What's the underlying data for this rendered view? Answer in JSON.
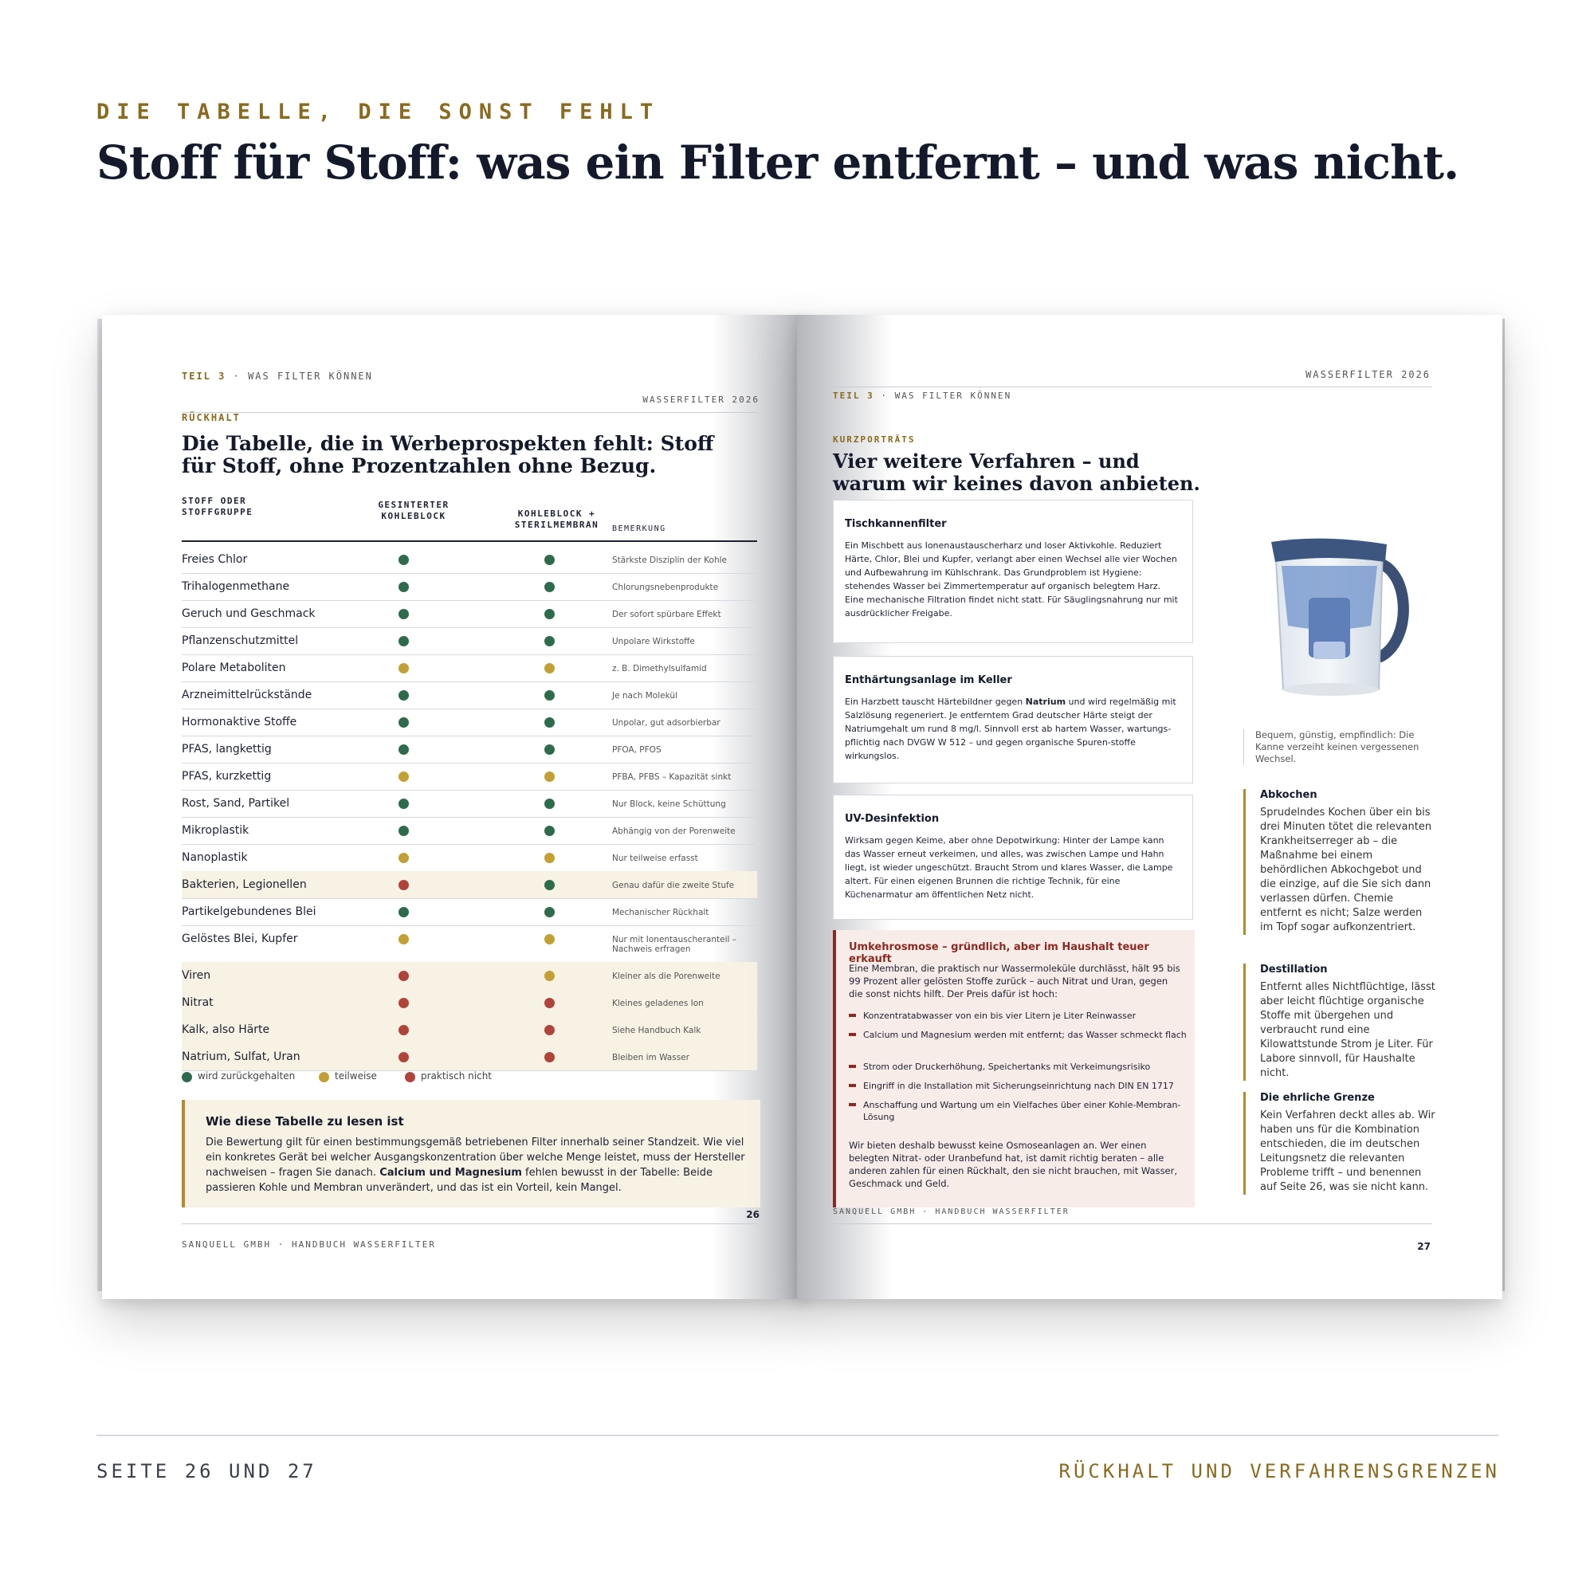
{
  "kicker": "DIE TABELLE, DIE SONST FEHLT",
  "headline": "Stoff für Stoff: was ein Filter entfernt – und was nicht.",
  "left_page": {
    "running_head_part": "TEIL 3",
    "running_head_sep": "·",
    "running_head_title": "WAS FILTER KÖNNEN",
    "running_head_right": "WASSERFILTER 2026",
    "section": "RÜCKHALT",
    "title_line1": "Die Tabelle, die in Werbeprospekten fehlt: Stoff",
    "title_line2": "für Stoff, ohne Prozentzahlen ohne Bezug.",
    "columns": {
      "substance_line1": "STOFF ODER",
      "substance_line2": "STOFFGRUPPE",
      "col1_line1": "GESINTERTER",
      "col1_line2": "KOHLEBLOCK",
      "col2_line1": "KOHLEBLOCK +",
      "col2_line2": "STERILMEMBRAN",
      "remark": "BEMERKUNG"
    },
    "rows": [
      {
        "substance": "Freies Chlor",
        "kohleblock": "wird zurückgehalten",
        "membran": "wird zurückgehalten",
        "note": "Stärkste Disziplin der Kohle"
      },
      {
        "substance": "Trihalogenmethane",
        "kohleblock": "wird zurückgehalten",
        "membran": "wird zurückgehalten",
        "note": "Chlorungsnebenprodukte"
      },
      {
        "substance": "Geruch und Geschmack",
        "kohleblock": "wird zurückgehalten",
        "membran": "wird zurückgehalten",
        "note": "Der sofort spürbare Effekt"
      },
      {
        "substance": "Pflanzenschutzmittel",
        "kohleblock": "wird zurückgehalten",
        "membran": "wird zurückgehalten",
        "note": "Unpolare Wirkstoffe"
      },
      {
        "substance": "Polare Metaboliten",
        "kohleblock": "teilweise",
        "membran": "teilweise",
        "note": "z. B. Dimethylsulfamid"
      },
      {
        "substance": "Arzneimittelrückstände",
        "kohleblock": "wird zurückgehalten",
        "membran": "wird zurückgehalten",
        "note": "Je nach Molekül"
      },
      {
        "substance": "Hormonaktive Stoffe",
        "kohleblock": "wird zurückgehalten",
        "membran": "wird zurückgehalten",
        "note": "Unpolar, gut adsorbierbar"
      },
      {
        "substance": "PFAS, langkettig",
        "kohleblock": "wird zurückgehalten",
        "membran": "wird zurückgehalten",
        "note": "PFOA, PFOS"
      },
      {
        "substance": "PFAS, kurzkettig",
        "kohleblock": "teilweise",
        "membran": "teilweise",
        "note": "PFBA, PFBS – Kapazität sinkt"
      },
      {
        "substance": "Rost, Sand, Partikel",
        "kohleblock": "wird zurückgehalten",
        "membran": "wird zurückgehalten",
        "note": "Nur Block, keine Schüttung"
      },
      {
        "substance": "Mikroplastik",
        "kohleblock": "wird zurückgehalten",
        "membran": "wird zurückgehalten",
        "note": "Abhängig von der Porenweite"
      },
      {
        "substance": "Nanoplastik",
        "kohleblock": "teilweise",
        "membran": "teilweise",
        "note": "Nur teilweise erfasst"
      },
      {
        "substance": "Bakterien, Legionellen",
        "kohleblock": "praktisch nicht",
        "membran": "wird zurückgehalten",
        "note": "Genau dafür die zweite Stufe"
      },
      {
        "substance": "Partikelgebundenes Blei",
        "kohleblock": "wird zurückgehalten",
        "membran": "wird zurückgehalten",
        "note": "Mechanischer Rückhalt"
      },
      {
        "substance": "Gelöstes Blei, Kupfer",
        "kohleblock": "teilweise",
        "membran": "teilweise",
        "note": "Nur mit Ionentauscheranteil –",
        "note2": "Nachweis erfragen"
      },
      {
        "substance": "Viren",
        "kohleblock": "praktisch nicht",
        "membran": "teilweise",
        "note": "Kleiner als die Porenweite"
      },
      {
        "substance": "Nitrat",
        "kohleblock": "praktisch nicht",
        "membran": "praktisch nicht",
        "note": "Kleines geladenes Ion"
      },
      {
        "substance": "Kalk, also Härte",
        "kohleblock": "praktisch nicht",
        "membran": "praktisch nicht",
        "note": "Siehe Handbuch Kalk"
      },
      {
        "substance": "Natrium, Sulfat, Uran",
        "kohleblock": "praktisch nicht",
        "membran": "praktisch nicht",
        "note": "Bleiben im Wasser"
      }
    ],
    "legend": {
      "green": "wird zurückgehalten",
      "yellow": "teilweise",
      "red": "praktisch nicht"
    },
    "status_colors": {
      "wird zurückgehalten": "#2e6b4c",
      "teilweise": "#c2a033",
      "praktisch nicht": "#b0443a"
    },
    "howto_title": "Wie diese Tabelle zu lesen ist",
    "howto_text_1": "Die Bewertung gilt für einen bestimmungsgemäß betriebenen Filter innerhalb seiner Standzeit. Wie viel ein konkretes Gerät bei welcher Ausgangskonzentration über welche Menge leistet, muss der Hersteller nachweisen – fragen Sie danach. ",
    "howto_bold": "Calcium und Magnesium",
    "howto_text_2": " fehlen bewusst in der Tabelle: Beide passieren Kohle und Membran unverändert, und das ist ein Vorteil, kein Mangel.",
    "page_number": "26",
    "footer": "SANQUELL GMBH · HANDBUCH WASSERFILTER"
  },
  "right_page": {
    "running_head_part": "TEIL 3",
    "running_head_sep": "·",
    "running_head_title": "WAS FILTER KÖNNEN",
    "running_head_right": "WASSERFILTER 2026",
    "section": "KURZPORTRÄTS",
    "title_line1": "Vier weitere Verfahren – und",
    "title_line2": "warum wir keines davon anbieten.",
    "boxes": [
      {
        "title": "Tischkannenfilter",
        "text": "Ein Mischbett aus Ionenaustauscherharz und loser Aktivkohle. Reduziert Härte, Chlor, Blei und Kupfer, verlangt aber einen Wechsel alle vier Wochen und Aufbewahrung im Kühlschrank. Das Grundproblem ist Hygiene: stehendes Wasser bei Zimmertemperatur auf organisch belegtem Harz. Eine mechanische Filtration findet nicht statt. Für Säuglingsnahrung nur mit ausdrücklicher Freigabe."
      },
      {
        "title": "Enthärtungsanlage im Keller",
        "text_1": "Ein Harzbett tauscht Härtebildner gegen ",
        "text_bold": "Natrium",
        "text_2": " und wird regelmäßig mit Salzlösung regeneriert. Je entferntem Grad deutscher Härte steigt der Natriumgehalt um rund 8 mg/l. Sinnvoll erst ab hartem Wasser, wartungs-pflichtig nach DVGW W 512 – und gegen organische Spuren-stoffe wirkungslos."
      },
      {
        "title": "UV-Desinfektion",
        "text": "Wirksam gegen Keime, aber ohne Depotwirkung: Hinter der Lampe kann das Wasser erneut verkeimen, und alles, was zwischen Lampe und Hahn liegt, ist wieder ungeschützt. Braucht Strom und klares Wasser, die Lampe altert. Für einen eigenen Brunnen die richtige Technik, für eine Küchenarmatur am öffentlichen Netz nicht."
      }
    ],
    "ro_title": "Umkehrosmose – gründlich, aber im Haushalt teuer erkauft",
    "ro_intro": "Eine Membran, die praktisch nur Wassermoleküle durchlässt, hält 95 bis 99 Prozent aller gelösten Stoffe zurück – auch Nitrat und Uran, gegen die sonst nichts hilft. Der Preis dafür ist hoch:",
    "ro_bullets": [
      "Konzentratabwasser von ein bis vier Litern je Liter Reinwasser",
      "Calcium und Magnesium werden mit entfernt; das Wasser schmeckt flach",
      "Strom oder Druckerhöhung, Speichertanks mit Verkeimungsrisiko",
      "Eingriff in die Installation mit Sicherungseinrichtung nach DIN EN 1717",
      "Anschaffung und Wartung um ein Vielfaches über einer Kohle-Membran-Lösung"
    ],
    "ro_outro": "Wir bieten deshalb bewusst keine Osmoseanlagen an. Wer einen belegten Nitrat- oder Uranbefund hat, ist damit richtig beraten – alle anderen zahlen für einen Rückhalt, den sie nicht brauchen, mit Wasser, Geschmack und Geld.",
    "image_caption": "Bequem, günstig, empfindlich: Die Kanne verzeiht keinen vergessenen Wechsel.",
    "sidebar": [
      {
        "title": "Abkochen",
        "text": "Sprudelndes Kochen über ein bis drei Minuten tötet die relevanten Krankheitserreger ab – die Maßnahme bei einem behördlichen Abkochgebot und die einzige, auf die Sie sich dann verlassen dürfen. Chemie entfernt es nicht; Salze werden im Topf sogar aufkonzentriert."
      },
      {
        "title": "Destillation",
        "text": "Entfernt alles Nichtflüchtige, lässt aber leicht flüchtige organische Stoffe mit übergehen und verbraucht rund eine Kilowattstunde Strom je Liter. Für Labore sinnvoll, für Haushalte nicht."
      },
      {
        "title": "Die ehrliche Grenze",
        "text": "Kein Verfahren deckt alles ab. Wir haben uns für die Kombination entschieden, die im deutschen Leitungsnetz die relevanten Probleme trifft – und benennen auf Seite 26, was sie nicht kann."
      }
    ],
    "page_number": "27",
    "footer": "SANQUELL GMBH · HANDBUCH WASSERFILTER"
  },
  "bottom": {
    "left": "SEITE 26 UND 27",
    "right": "RÜCKHALT UND VERFAHRENSGRENZEN"
  }
}
